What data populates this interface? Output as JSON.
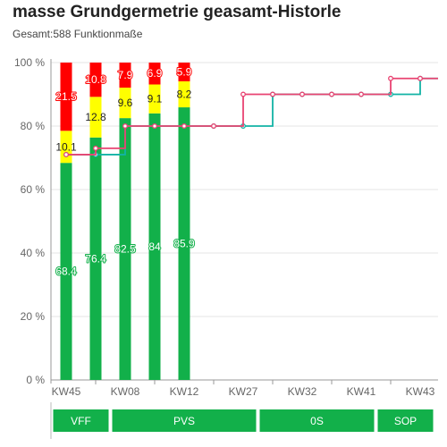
{
  "header": {
    "title": "masse Grundgermetrie geasamt-Historle",
    "subtitle": "Gesamt:588 Funktionmaße"
  },
  "chart_data": {
    "type": "bar",
    "title": "masse Grundgermetrie geasamt-Historle",
    "subtitle": "Gesamt:588 Funktionmaße",
    "ylim": [
      0,
      100
    ],
    "yticks": [
      "0 %",
      "20 %",
      "40 %",
      "60 %",
      "80 %",
      "100 %"
    ],
    "x_tick_labels": [
      "KW45",
      "KW08",
      "KW12",
      "KW27",
      "KW32",
      "KW41",
      "KW43"
    ],
    "grid": true,
    "colors": {
      "green": "#12b04a",
      "yellow": "#ffff00",
      "red": "#ff0000",
      "line_teal": "#12b3a5",
      "line_pink": "#e94472",
      "grid": "#e6e6e6",
      "axis": "#999999"
    },
    "bars": {
      "series": [
        {
          "color_key": "green",
          "values": [
            68.4,
            76.4,
            82.5,
            84,
            85.9
          ]
        },
        {
          "color_key": "yellow",
          "values": [
            10.1,
            12.8,
            9.6,
            9.1,
            8.2
          ]
        },
        {
          "color_key": "red",
          "values": [
            21.5,
            10.8,
            7.9,
            6.9,
            5.9
          ]
        }
      ],
      "positions": [
        0,
        1,
        2,
        3,
        4
      ]
    },
    "lines": [
      {
        "color_key": "line_teal",
        "x": [
          0,
          1,
          2,
          3,
          4,
          5,
          6,
          7,
          8,
          9,
          10,
          11,
          12
        ],
        "y": [
          71,
          71,
          80,
          80,
          80,
          80,
          80,
          90,
          90,
          90,
          90,
          90,
          95
        ]
      },
      {
        "color_key": "line_pink",
        "x": [
          0,
          1,
          2,
          3,
          4,
          5,
          6,
          7,
          8,
          9,
          10,
          11,
          12
        ],
        "y": [
          71,
          73,
          80,
          80,
          80,
          80,
          90,
          90,
          90,
          90,
          90,
          95,
          95
        ]
      }
    ],
    "phases": [
      {
        "label": "VFF",
        "from": 0,
        "to": 1
      },
      {
        "label": "PVS",
        "from": 2,
        "to": 6
      },
      {
        "label": "0S",
        "from": 7,
        "to": 10
      },
      {
        "label": "SOP",
        "from": 11,
        "to": 12
      }
    ]
  }
}
